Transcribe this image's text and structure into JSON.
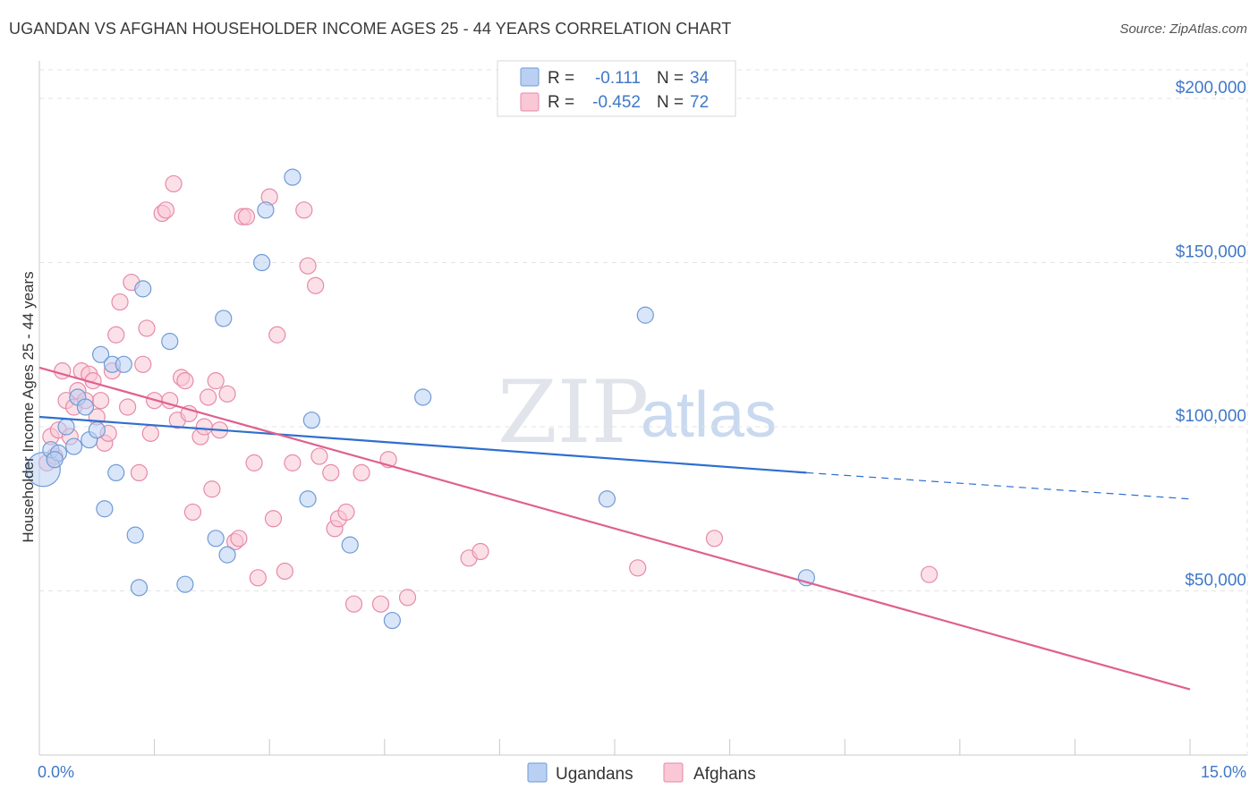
{
  "title": "UGANDAN VS AFGHAN HOUSEHOLDER INCOME AGES 25 - 44 YEARS CORRELATION CHART",
  "source": "Source: ZipAtlas.com",
  "watermark": {
    "zip": "ZIP",
    "atlas": "atlas"
  },
  "colors": {
    "ugandans_fill": "#b9d0f2",
    "ugandans_stroke": "#6f9bd6",
    "ugandans_line": "#2f6fcf",
    "afghans_fill": "#f9c7d6",
    "afghans_stroke": "#e68aa8",
    "afghans_line": "#e0608f",
    "grid": "#e3e3e3",
    "axis_label": "#3f78c8"
  },
  "legend": {
    "rows": [
      {
        "series": "Ugandans",
        "r_label": "R =",
        "r_value": "-0.111",
        "n_label": "N =",
        "n_value": "34"
      },
      {
        "series": "Afghans",
        "r_label": "R =",
        "r_value": "-0.452",
        "n_label": "N =",
        "n_value": "72"
      }
    ]
  },
  "chart_data": {
    "type": "scatter",
    "title": "UGANDAN VS AFGHAN HOUSEHOLDER INCOME AGES 25 - 44 YEARS CORRELATION CHART",
    "xlabel": "",
    "ylabel": "Householder Income Ages 25 - 44 years",
    "xlim": [
      0,
      15
    ],
    "ylim": [
      0,
      215000
    ],
    "x_tick_labels": {
      "left": "0.0%",
      "right": "15.0%"
    },
    "y_ticks": [
      {
        "value": 200000,
        "label": "$200,000"
      },
      {
        "value": 150000,
        "label": "$150,000"
      },
      {
        "value": 100000,
        "label": "$100,000"
      },
      {
        "value": 50000,
        "label": "$50,000"
      }
    ],
    "grid": true,
    "series": [
      {
        "name": "Ugandans",
        "r": -0.111,
        "n": 34,
        "trend": {
          "x0": 0,
          "y0": 103000,
          "x1": 10.0,
          "y1": 86000,
          "x_dash_end": 15.0,
          "y_dash_end": 78000
        },
        "points": [
          [
            0.05,
            87000
          ],
          [
            0.15,
            93000
          ],
          [
            0.25,
            92000
          ],
          [
            0.35,
            100000
          ],
          [
            0.45,
            94000
          ],
          [
            0.5,
            109000
          ],
          [
            0.6,
            106000
          ],
          [
            0.65,
            96000
          ],
          [
            0.75,
            99000
          ],
          [
            0.8,
            122000
          ],
          [
            0.85,
            75000
          ],
          [
            0.95,
            119000
          ],
          [
            1.0,
            86000
          ],
          [
            1.1,
            119000
          ],
          [
            1.25,
            67000
          ],
          [
            1.3,
            51000
          ],
          [
            1.35,
            142000
          ],
          [
            1.7,
            126000
          ],
          [
            1.9,
            52000
          ],
          [
            2.3,
            66000
          ],
          [
            2.4,
            133000
          ],
          [
            2.45,
            61000
          ],
          [
            2.9,
            150000
          ],
          [
            2.95,
            166000
          ],
          [
            3.3,
            176000
          ],
          [
            3.5,
            78000
          ],
          [
            3.55,
            102000
          ],
          [
            4.05,
            64000
          ],
          [
            4.6,
            41000
          ],
          [
            5.0,
            109000
          ],
          [
            7.4,
            78000
          ],
          [
            7.9,
            134000
          ],
          [
            10.0,
            54000
          ],
          [
            0.2,
            90000
          ]
        ]
      },
      {
        "name": "Afghans",
        "r": -0.452,
        "n": 72,
        "trend": {
          "x0": 0,
          "y0": 118000,
          "x1": 15.0,
          "y1": 20000
        },
        "points": [
          [
            0.1,
            89000
          ],
          [
            0.15,
            97000
          ],
          [
            0.2,
            91000
          ],
          [
            0.25,
            99000
          ],
          [
            0.3,
            117000
          ],
          [
            0.35,
            108000
          ],
          [
            0.4,
            97000
          ],
          [
            0.45,
            106000
          ],
          [
            0.5,
            111000
          ],
          [
            0.55,
            117000
          ],
          [
            0.6,
            108000
          ],
          [
            0.65,
            116000
          ],
          [
            0.7,
            114000
          ],
          [
            0.75,
            103000
          ],
          [
            0.8,
            108000
          ],
          [
            0.85,
            95000
          ],
          [
            0.9,
            98000
          ],
          [
            0.95,
            117000
          ],
          [
            1.0,
            128000
          ],
          [
            1.05,
            138000
          ],
          [
            1.15,
            106000
          ],
          [
            1.2,
            144000
          ],
          [
            1.3,
            86000
          ],
          [
            1.35,
            119000
          ],
          [
            1.4,
            130000
          ],
          [
            1.45,
            98000
          ],
          [
            1.5,
            108000
          ],
          [
            1.6,
            165000
          ],
          [
            1.65,
            166000
          ],
          [
            1.7,
            108000
          ],
          [
            1.75,
            174000
          ],
          [
            1.8,
            102000
          ],
          [
            1.85,
            115000
          ],
          [
            1.9,
            114000
          ],
          [
            1.95,
            104000
          ],
          [
            2.0,
            74000
          ],
          [
            2.1,
            97000
          ],
          [
            2.15,
            100000
          ],
          [
            2.2,
            109000
          ],
          [
            2.25,
            81000
          ],
          [
            2.3,
            114000
          ],
          [
            2.35,
            99000
          ],
          [
            2.45,
            110000
          ],
          [
            2.55,
            65000
          ],
          [
            2.6,
            66000
          ],
          [
            2.65,
            164000
          ],
          [
            2.7,
            164000
          ],
          [
            2.8,
            89000
          ],
          [
            2.85,
            54000
          ],
          [
            3.0,
            170000
          ],
          [
            3.05,
            72000
          ],
          [
            3.1,
            128000
          ],
          [
            3.2,
            56000
          ],
          [
            3.3,
            89000
          ],
          [
            3.45,
            166000
          ],
          [
            3.5,
            149000
          ],
          [
            3.6,
            143000
          ],
          [
            3.65,
            91000
          ],
          [
            3.8,
            86000
          ],
          [
            3.85,
            69000
          ],
          [
            3.9,
            72000
          ],
          [
            4.0,
            74000
          ],
          [
            4.1,
            46000
          ],
          [
            4.2,
            86000
          ],
          [
            4.45,
            46000
          ],
          [
            4.55,
            90000
          ],
          [
            4.8,
            48000
          ],
          [
            5.6,
            60000
          ],
          [
            5.75,
            62000
          ],
          [
            7.8,
            57000
          ],
          [
            8.8,
            66000
          ],
          [
            11.6,
            55000
          ]
        ]
      }
    ]
  },
  "bottom_legend": [
    {
      "series": "Ugandans",
      "label": "Ugandans"
    },
    {
      "series": "Afghans",
      "label": "Afghans"
    }
  ]
}
